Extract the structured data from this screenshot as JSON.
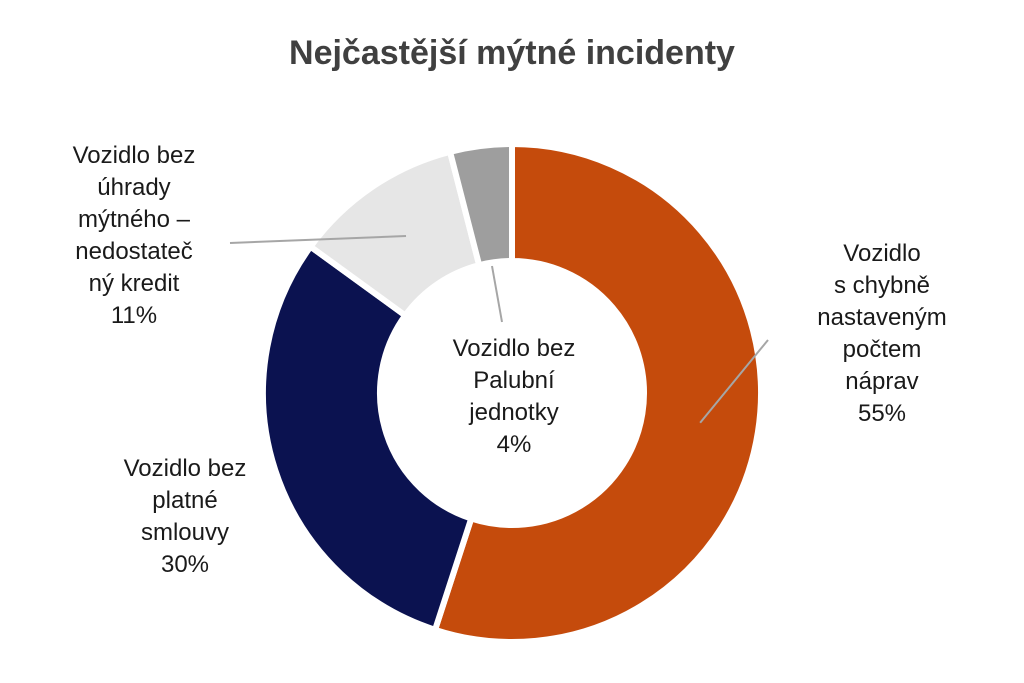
{
  "chart_data": {
    "type": "pie",
    "title": "Nejčastější mýtné incidenty",
    "donut": true,
    "slices": [
      {
        "label": "Vozidlo s chybně nastaveným počtem náprav",
        "value": 55,
        "value_label": "55%",
        "color": "#c54b0c",
        "label_lines": [
          "Vozidlo",
          "s chybně",
          "nastaveným",
          "počtem",
          "náprav"
        ]
      },
      {
        "label": "Vozidlo bez platné smlouvy",
        "value": 30,
        "value_label": "30%",
        "color": "#0b1250",
        "label_lines": [
          "Vozidlo bez",
          "platné",
          "smlouvy"
        ]
      },
      {
        "label": "Vozidlo bez úhrady mýtného – nedostatečný kredit",
        "value": 11,
        "value_label": "11%",
        "color": "#e6e6e6",
        "label_lines": [
          "Vozidlo bez",
          "úhrady",
          "mýtného –",
          "nedostateč",
          "ný kredit"
        ]
      },
      {
        "label": "Vozidlo bez Palubní jednotky",
        "value": 4,
        "value_label": "4%",
        "color": "#9e9e9e",
        "label_lines": [
          "Vozidlo bez",
          "Palubní",
          "jednotky"
        ]
      }
    ]
  }
}
